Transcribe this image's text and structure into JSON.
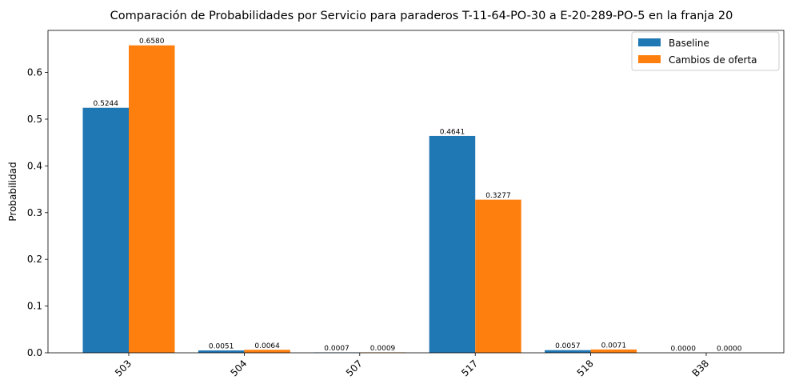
{
  "chart_data": {
    "type": "bar",
    "title": "Comparación de Probabilidades por Servicio para paraderos T-11-64-PO-30 a E-20-289-PO-5 en la franja 20",
    "xlabel": "",
    "ylabel": "Probabilidad",
    "categories": [
      "503",
      "504",
      "507",
      "517",
      "518",
      "B38"
    ],
    "series": [
      {
        "name": "Baseline",
        "color": "#1f77b4",
        "values": [
          0.5244,
          0.0051,
          0.0007,
          0.4641,
          0.0057,
          0.0
        ],
        "labels": [
          "0.5244",
          "0.0051",
          "0.0007",
          "0.4641",
          "0.0057",
          "0.0000"
        ]
      },
      {
        "name": "Cambios de oferta",
        "color": "#ff7f0e",
        "values": [
          0.658,
          0.0064,
          0.0009,
          0.3277,
          0.0071,
          0.0
        ],
        "labels": [
          "0.6580",
          "0.0064",
          "0.0009",
          "0.3277",
          "0.0071",
          "0.0000"
        ]
      }
    ],
    "ylim": [
      0,
      0.69
    ],
    "yticks": [
      0.0,
      0.1,
      0.2,
      0.3,
      0.4,
      0.5,
      0.6
    ],
    "ytick_labels": [
      "0.0",
      "0.1",
      "0.2",
      "0.3",
      "0.4",
      "0.5",
      "0.6"
    ],
    "legend_position": "top-right",
    "grid": false
  }
}
